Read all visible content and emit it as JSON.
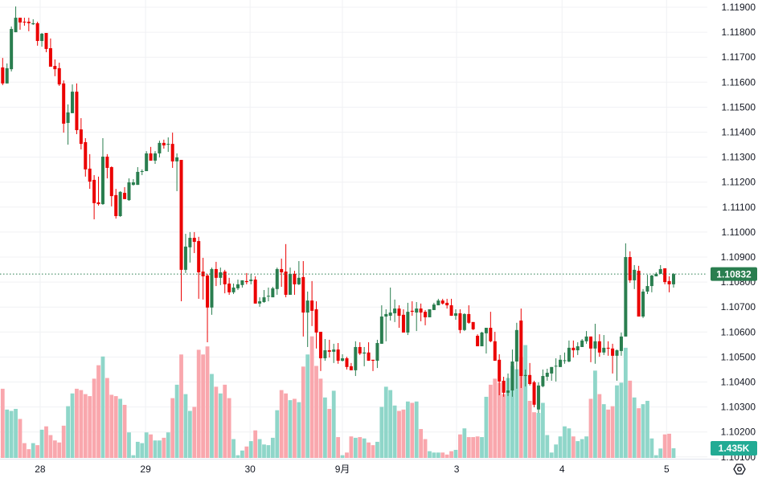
{
  "chart_data": {
    "type": "candlestick",
    "title": "",
    "timeframe_note": "hourly candles",
    "x_tick_labels": [
      "28",
      "29",
      "30",
      "9月",
      "3",
      "4",
      "5"
    ],
    "y_tick_labels": [
      "1.11900",
      "1.11800",
      "1.11700",
      "1.11600",
      "1.11500",
      "1.11400",
      "1.11300",
      "1.11200",
      "1.11100",
      "1.11000",
      "1.10900",
      "1.10800",
      "1.10700",
      "1.10600",
      "1.10500",
      "1.10400",
      "1.10300",
      "1.10200",
      "1.10100"
    ],
    "ylim": [
      1.101,
      1.1192
    ],
    "grid": true,
    "last_price": "1.10832",
    "last_volume": "1.435K",
    "colors": {
      "up": "#2a7e4f",
      "down": "#eb0000",
      "vol_up": "#8fd6c9",
      "vol_down": "#f9a7ad",
      "price_badge": "#2a7e4f",
      "volume_badge": "#22ab94"
    },
    "ohlc": [
      [
        1.11659,
        1.11697,
        1.11588,
        1.11595
      ],
      [
        1.11595,
        1.11675,
        1.11595,
        1.11656
      ],
      [
        1.11652,
        1.11823,
        1.11643,
        1.11813
      ],
      [
        1.118,
        1.11903,
        1.118,
        1.11858
      ],
      [
        1.11858,
        1.11858,
        1.1181,
        1.11839
      ],
      [
        1.11842,
        1.11858,
        1.11826,
        1.11839
      ],
      [
        1.11842,
        1.11858,
        1.11804,
        1.11836
      ],
      [
        1.11832,
        1.11852,
        1.11829,
        1.11836
      ],
      [
        1.11836,
        1.11842,
        1.11746,
        1.11765
      ],
      [
        1.11765,
        1.11797,
        1.11742,
        1.11794
      ],
      [
        1.11797,
        1.11797,
        1.1172,
        1.11733
      ],
      [
        1.11736,
        1.11775,
        1.11662,
        1.11662
      ],
      [
        1.11665,
        1.11691,
        1.11624,
        1.11652
      ],
      [
        1.11656,
        1.11678,
        1.11585,
        1.11591
      ],
      [
        1.11595,
        1.11607,
        1.11398,
        1.11434
      ],
      [
        1.11437,
        1.11511,
        1.1135,
        1.11479
      ],
      [
        1.11476,
        1.11591,
        1.11476,
        1.11562
      ],
      [
        1.11562,
        1.11595,
        1.11392,
        1.11408
      ],
      [
        1.11411,
        1.11456,
        1.11331,
        1.11353
      ],
      [
        1.1136,
        1.11376,
        1.11222,
        1.11251
      ],
      [
        1.11254,
        1.11312,
        1.11173,
        1.11202
      ],
      [
        1.11209,
        1.11228,
        1.11051,
        1.11116
      ],
      [
        1.11119,
        1.11222,
        1.11106,
        1.11112
      ],
      [
        1.11112,
        1.11376,
        1.11109,
        1.11302
      ],
      [
        1.11302,
        1.11312,
        1.11215,
        1.11257
      ],
      [
        1.1126,
        1.11263,
        1.11103,
        1.11144
      ],
      [
        1.11148,
        1.11173,
        1.11054,
        1.11064
      ],
      [
        1.11064,
        1.11164,
        1.11061,
        1.11161
      ],
      [
        1.11157,
        1.1118,
        1.11132,
        1.11132
      ],
      [
        1.11128,
        1.11215,
        1.11125,
        1.11199
      ],
      [
        1.11189,
        1.11212,
        1.11186,
        1.11199
      ],
      [
        1.11189,
        1.1126,
        1.11189,
        1.11241
      ],
      [
        1.11241,
        1.11251,
        1.11228,
        1.11244
      ],
      [
        1.11244,
        1.11324,
        1.11244,
        1.11315
      ],
      [
        1.11315,
        1.11341,
        1.11286,
        1.11286
      ],
      [
        1.11286,
        1.11324,
        1.11273,
        1.11315
      ],
      [
        1.11315,
        1.11366,
        1.11299,
        1.11357
      ],
      [
        1.11357,
        1.1137,
        1.11334,
        1.11347
      ],
      [
        1.1135,
        1.11379,
        1.11321,
        1.11353
      ],
      [
        1.11353,
        1.11398,
        1.11257,
        1.11283
      ],
      [
        1.11283,
        1.11315,
        1.11164,
        1.11299
      ],
      [
        1.11289,
        1.11289,
        1.10723,
        1.10849
      ],
      [
        1.10849,
        1.10993,
        1.10836,
        1.10942
      ],
      [
        1.10939,
        1.11,
        1.10878,
        1.10977
      ],
      [
        1.10977,
        1.11,
        1.10916,
        1.10961
      ],
      [
        1.10964,
        1.10981,
        1.10733,
        1.10839
      ],
      [
        1.10842,
        1.10897,
        1.1073,
        1.10823
      ],
      [
        1.10826,
        1.10833,
        1.10559,
        1.10698
      ],
      [
        1.10698,
        1.10858,
        1.10669,
        1.10852
      ],
      [
        1.10852,
        1.10881,
        1.10784,
        1.10817
      ],
      [
        1.10817,
        1.10858,
        1.10788,
        1.10839
      ],
      [
        1.10842,
        1.10849,
        1.10755,
        1.10791
      ],
      [
        1.10794,
        1.10817,
        1.10749,
        1.10759
      ],
      [
        1.10759,
        1.10794,
        1.10752,
        1.10778
      ],
      [
        1.10775,
        1.1081,
        1.10768,
        1.10791
      ],
      [
        1.10788,
        1.10807,
        1.10778,
        1.10807
      ],
      [
        1.10804,
        1.10836,
        1.10791,
        1.108
      ],
      [
        1.10804,
        1.10833,
        1.10791,
        1.1081
      ],
      [
        1.1081,
        1.10823,
        1.10714,
        1.10714
      ],
      [
        1.10714,
        1.10739,
        1.10701,
        1.10723
      ],
      [
        1.1072,
        1.10768,
        1.10717,
        1.10739
      ],
      [
        1.10743,
        1.10778,
        1.10723,
        1.10745
      ],
      [
        1.10739,
        1.10781,
        1.10739,
        1.10775
      ],
      [
        1.10772,
        1.10858,
        1.10749,
        1.10852
      ],
      [
        1.10852,
        1.10894,
        1.10781,
        1.10839
      ],
      [
        1.10842,
        1.10952,
        1.10739,
        1.10749
      ],
      [
        1.10749,
        1.10858,
        1.10749,
        1.10833
      ],
      [
        1.10833,
        1.10845,
        1.10749,
        1.10791
      ],
      [
        1.10791,
        1.10884,
        1.10788,
        1.10817
      ],
      [
        1.1082,
        1.10884,
        1.10582,
        1.10678
      ],
      [
        1.10678,
        1.10762,
        1.1054,
        1.10726
      ],
      [
        1.10726,
        1.10804,
        1.10624,
        1.10685
      ],
      [
        1.10691,
        1.10723,
        1.10534,
        1.10598
      ],
      [
        1.10601,
        1.10601,
        1.10444,
        1.10495
      ],
      [
        1.10495,
        1.10572,
        1.10485,
        1.10527
      ],
      [
        1.10527,
        1.10569,
        1.10498,
        1.10521
      ],
      [
        1.10521,
        1.10553,
        1.10476,
        1.1053
      ],
      [
        1.1053,
        1.10556,
        1.10473,
        1.10485
      ],
      [
        1.10485,
        1.10511,
        1.10482,
        1.10495
      ],
      [
        1.10495,
        1.10501,
        1.1045,
        1.1046
      ],
      [
        1.10463,
        1.10476,
        1.10447,
        1.10447
      ],
      [
        1.10447,
        1.10563,
        1.10424,
        1.1054
      ],
      [
        1.1054,
        1.10559,
        1.10508,
        1.10514
      ],
      [
        1.10514,
        1.1054,
        1.10463,
        1.10518
      ],
      [
        1.10518,
        1.10559,
        1.10485,
        1.10485
      ],
      [
        1.10489,
        1.10489,
        1.10444,
        1.10485
      ],
      [
        1.10485,
        1.10569,
        1.10456,
        1.10556
      ],
      [
        1.10553,
        1.10707,
        1.10553,
        1.10662
      ],
      [
        1.10662,
        1.10691,
        1.10563,
        1.10672
      ],
      [
        1.10665,
        1.10778,
        1.10646,
        1.10678
      ],
      [
        1.10675,
        1.1073,
        1.1064,
        1.10694
      ],
      [
        1.10694,
        1.10707,
        1.10617,
        1.10665
      ],
      [
        1.10669,
        1.10691,
        1.10598,
        1.10598
      ],
      [
        1.10598,
        1.10717,
        1.10588,
        1.10681
      ],
      [
        1.10685,
        1.10723,
        1.10665,
        1.10681
      ],
      [
        1.10678,
        1.1072,
        1.10604,
        1.10694
      ],
      [
        1.10694,
        1.10714,
        1.10643,
        1.10678
      ],
      [
        1.10681,
        1.10688,
        1.10627,
        1.10659
      ],
      [
        1.10659,
        1.10691,
        1.10659,
        1.10691
      ],
      [
        1.10688,
        1.10717,
        1.10688,
        1.1071
      ],
      [
        1.10707,
        1.10733,
        1.10707,
        1.10726
      ],
      [
        1.10726,
        1.10733,
        1.1071,
        1.10714
      ],
      [
        1.10717,
        1.10733,
        1.10694,
        1.10707
      ],
      [
        1.10707,
        1.10733,
        1.10665,
        1.10665
      ],
      [
        1.10665,
        1.10691,
        1.10649,
        1.10675
      ],
      [
        1.10675,
        1.10691,
        1.10595,
        1.10608
      ],
      [
        1.10608,
        1.10675,
        1.10604,
        1.10672
      ],
      [
        1.10672,
        1.10707,
        1.10633,
        1.10637
      ],
      [
        1.1064,
        1.1064,
        1.10608,
        1.10611
      ],
      [
        1.10585,
        1.10591,
        1.10543,
        1.10543
      ],
      [
        1.10543,
        1.10601,
        1.10543,
        1.10598
      ],
      [
        1.10595,
        1.10617,
        1.10514,
        1.10617
      ],
      [
        1.10617,
        1.10681,
        1.10559,
        1.10563
      ],
      [
        1.10563,
        1.10601,
        1.10485,
        1.10485
      ],
      [
        1.10489,
        1.10511,
        1.10347,
        1.10402
      ],
      [
        1.10405,
        1.10421,
        1.10341,
        1.10357
      ],
      [
        1.10357,
        1.10434,
        1.10344,
        1.10366
      ],
      [
        1.10366,
        1.1053,
        1.10341,
        1.10482
      ],
      [
        1.10482,
        1.10637,
        1.10373,
        1.10608
      ],
      [
        1.10646,
        1.10694,
        1.10376,
        1.10424
      ],
      [
        1.10424,
        1.1045,
        1.10382,
        1.10428
      ],
      [
        1.10428,
        1.10476,
        1.10386,
        1.10392
      ],
      [
        1.10399,
        1.10405,
        1.10299,
        1.10309
      ],
      [
        1.1029,
        1.10399,
        1.10276,
        1.10386
      ],
      [
        1.10383,
        1.1045,
        1.10379,
        1.10424
      ],
      [
        1.10421,
        1.10453,
        1.10405,
        1.10437
      ],
      [
        1.10434,
        1.1046,
        1.10405,
        1.1046
      ],
      [
        1.10463,
        1.10495,
        1.10402,
        1.10465
      ],
      [
        1.1046,
        1.10508,
        1.1046,
        1.10489
      ],
      [
        1.10485,
        1.10518,
        1.10473,
        1.10487
      ],
      [
        1.10482,
        1.10566,
        1.10479,
        1.10537
      ],
      [
        1.10537,
        1.10566,
        1.10498,
        1.10527
      ],
      [
        1.10527,
        1.10559,
        1.10508,
        1.10543
      ],
      [
        1.1054,
        1.10572,
        1.1054,
        1.10566
      ],
      [
        1.10563,
        1.10604,
        1.10553,
        1.10582
      ],
      [
        1.10582,
        1.10582,
        1.10479,
        1.10534
      ],
      [
        1.10534,
        1.10633,
        1.10473,
        1.10563
      ],
      [
        1.10563,
        1.10591,
        1.10501,
        1.10518
      ],
      [
        1.10518,
        1.10588,
        1.10508,
        1.10537
      ],
      [
        1.10537,
        1.10563,
        1.10505,
        1.10534
      ],
      [
        1.10534,
        1.10553,
        1.10434,
        1.10505
      ],
      [
        1.10505,
        1.1053,
        1.10405,
        1.10527
      ],
      [
        1.10524,
        1.10598,
        1.10505,
        1.10582
      ],
      [
        1.10582,
        1.10955,
        1.10582,
        1.109
      ],
      [
        1.109,
        1.10923,
        1.10797,
        1.10807
      ],
      [
        1.10807,
        1.10868,
        1.10772,
        1.10849
      ],
      [
        1.10845,
        1.10865,
        1.10662,
        1.10662
      ],
      [
        1.10662,
        1.10772,
        1.10656,
        1.10762
      ],
      [
        1.10762,
        1.10829,
        1.10752,
        1.10784
      ],
      [
        1.10784,
        1.10829,
        1.10759,
        1.10826
      ],
      [
        1.10823,
        1.10839,
        1.10823,
        1.10833
      ],
      [
        1.10833,
        1.10868,
        1.10833,
        1.10852
      ],
      [
        1.10855,
        1.10855,
        1.10791,
        1.108
      ],
      [
        1.10804,
        1.10823,
        1.10759,
        1.10791
      ],
      [
        1.10791,
        1.10836,
        1.10778,
        1.10832
      ]
    ],
    "volume_k": [
      10.3,
      7.2,
      7.0,
      7.3,
      5.8,
      2.2,
      1.3,
      2.2,
      1.9,
      4.2,
      4.7,
      3.4,
      2.6,
      2.3,
      4.8,
      7.7,
      9.6,
      10.3,
      10.1,
      9.5,
      9.2,
      11.8,
      13.8,
      15.1,
      11.9,
      9.4,
      9.2,
      8.8,
      7.9,
      3.8,
      0.4,
      2.4,
      2.2,
      3.8,
      3.5,
      2.6,
      2.6,
      3.0,
      3.8,
      8.9,
      10.9,
      15.4,
      9.5,
      7.0,
      7.6,
      16.1,
      15.4,
      16.6,
      12.5,
      10.6,
      9.6,
      10.9,
      8.9,
      2.8,
      0.4,
      1.1,
      1.7,
      2.5,
      4.1,
      2.8,
      2.0,
      1.9,
      3.0,
      7.1,
      10.1,
      9.6,
      8.6,
      8.8,
      8.3,
      13.6,
      15.4,
      18.1,
      13.7,
      11.8,
      9.0,
      7.3,
      10.0,
      3.1,
      0.4,
      0.8,
      3.2,
      3.0,
      3.1,
      2.9,
      2.3,
      1.9,
      2.4,
      7.6,
      10.6,
      10.1,
      7.8,
      7.0,
      7.2,
      8.4,
      8.2,
      8.4,
      4.3,
      2.8,
      1.0,
      0.8,
      0.8,
      0.8,
      0.5,
      1.0,
      1.2,
      3.5,
      4.4,
      3.1,
      3.1,
      3.2,
      3.1,
      9.1,
      10.9,
      11.8,
      11.2,
      9.5,
      11.9,
      13.7,
      13.2,
      15.0,
      16.8,
      8.5,
      6.8,
      6.7,
      8.2,
      3.4,
      0.8,
      2.0,
      3.2,
      4.7,
      4.4,
      3.2,
      2.5,
      2.8,
      3.2,
      8.8,
      13.0,
      9.5,
      8.0,
      7.2,
      7.7,
      10.8,
      11.2,
      16.4,
      11.5,
      9.0,
      7.4,
      8.0,
      8.5,
      2.9,
      0.4,
      1.4,
      3.5,
      3.6,
      1.435
    ]
  }
}
